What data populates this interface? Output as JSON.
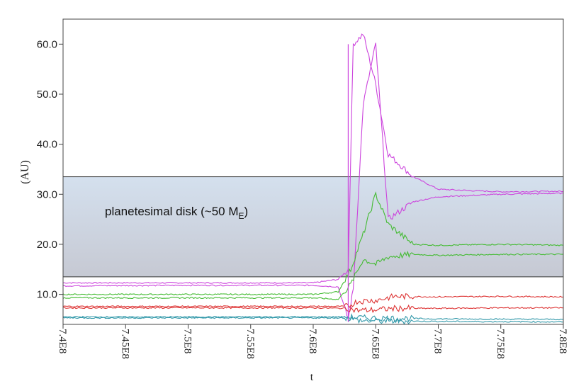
{
  "chart_data": {
    "type": "line",
    "title": "",
    "xlabel": "t",
    "ylabel": "(AU)",
    "xlim": [
      740000000,
      780000000
    ],
    "ylim": [
      4,
      65
    ],
    "xticks": [
      {
        "value": 740000000,
        "label": "7.4E8"
      },
      {
        "value": 745000000,
        "label": "7.45E8"
      },
      {
        "value": 750000000,
        "label": "7.5E8"
      },
      {
        "value": 755000000,
        "label": "7.55E8"
      },
      {
        "value": 760000000,
        "label": "7.6E8"
      },
      {
        "value": 765000000,
        "label": "7.65E8"
      },
      {
        "value": 770000000,
        "label": "7.7E8"
      },
      {
        "value": 775000000,
        "label": "7.75E8"
      },
      {
        "value": 780000000,
        "label": "7.8E8"
      }
    ],
    "yticks": [
      {
        "value": 10,
        "label": "10.0"
      },
      {
        "value": 20,
        "label": "20.0"
      },
      {
        "value": 30,
        "label": "30.0"
      },
      {
        "value": 40,
        "label": "40.0"
      },
      {
        "value": 50,
        "label": "50.0"
      },
      {
        "value": 60,
        "label": "60.0"
      }
    ],
    "grid": false,
    "annotations": [
      {
        "text": "planetesimal disk (~50 M",
        "subscript": "E",
        "suffix": ")",
        "y_range": [
          13.5,
          33.5
        ]
      }
    ],
    "colors": {
      "magenta": "#cc44dd",
      "green": "#44bb33",
      "red": "#dd3333",
      "teal": "#3399aa",
      "disk_top": "#d4e0ee",
      "disk_bottom": "#c6c9d3"
    },
    "series": [
      {
        "color": "magenta",
        "x": [
          740000000,
          750000000,
          760000000,
          762000000,
          762800000,
          763200000,
          764000000,
          765000000,
          766000000,
          768000000,
          770000000,
          775000000,
          780000000
        ],
        "values": [
          12.3,
          12.3,
          12.3,
          13.0,
          15.0,
          60.0,
          62.0,
          52.0,
          38.0,
          33.5,
          31.0,
          30.5,
          30.6
        ]
      },
      {
        "color": "magenta",
        "x": [
          740000000,
          750000000,
          760000000,
          762000000,
          762800000,
          763200000,
          764000000,
          765000000,
          766000000,
          768000000,
          770000000,
          775000000,
          780000000
        ],
        "values": [
          11.7,
          11.8,
          11.8,
          11.5,
          5.0,
          11.0,
          48.0,
          60.0,
          25.0,
          28.5,
          29.5,
          30.0,
          30.2
        ]
      },
      {
        "color": "green",
        "x": [
          740000000,
          750000000,
          760000000,
          762000000,
          763000000,
          764000000,
          765000000,
          766000000,
          768000000,
          770000000,
          775000000,
          780000000
        ],
        "values": [
          10.0,
          10.0,
          10.0,
          10.5,
          15.0,
          22.0,
          30.0,
          24.0,
          20.0,
          19.8,
          20.0,
          19.8
        ]
      },
      {
        "color": "green",
        "x": [
          740000000,
          750000000,
          760000000,
          762000000,
          763000000,
          764000000,
          765000000,
          766000000,
          768000000,
          770000000,
          775000000,
          780000000
        ],
        "values": [
          9.3,
          9.3,
          9.3,
          9.0,
          12.0,
          17.0,
          16.0,
          17.5,
          18.0,
          17.8,
          18.0,
          18.0
        ]
      },
      {
        "color": "red",
        "x": [
          740000000,
          750000000,
          760000000,
          762800000,
          763500000,
          765000000,
          766500000,
          770000000,
          775000000,
          780000000
        ],
        "values": [
          7.6,
          7.6,
          7.6,
          7.6,
          8.6,
          8.8,
          9.6,
          9.5,
          9.6,
          9.5
        ]
      },
      {
        "color": "red",
        "x": [
          740000000,
          750000000,
          760000000,
          762800000,
          763500000,
          765000000,
          766500000,
          770000000,
          775000000,
          780000000
        ],
        "values": [
          7.3,
          7.3,
          7.3,
          7.2,
          6.8,
          6.9,
          7.2,
          7.2,
          7.3,
          7.3
        ]
      },
      {
        "color": "teal",
        "x": [
          740000000,
          762500000,
          764000000,
          770000000,
          780000000
        ],
        "values": [
          5.5,
          5.5,
          5.3,
          5.1,
          5.0
        ]
      },
      {
        "color": "teal",
        "x": [
          740000000,
          762500000,
          764000000,
          770000000,
          780000000
        ],
        "values": [
          5.3,
          5.3,
          4.7,
          4.6,
          4.5
        ]
      }
    ]
  }
}
